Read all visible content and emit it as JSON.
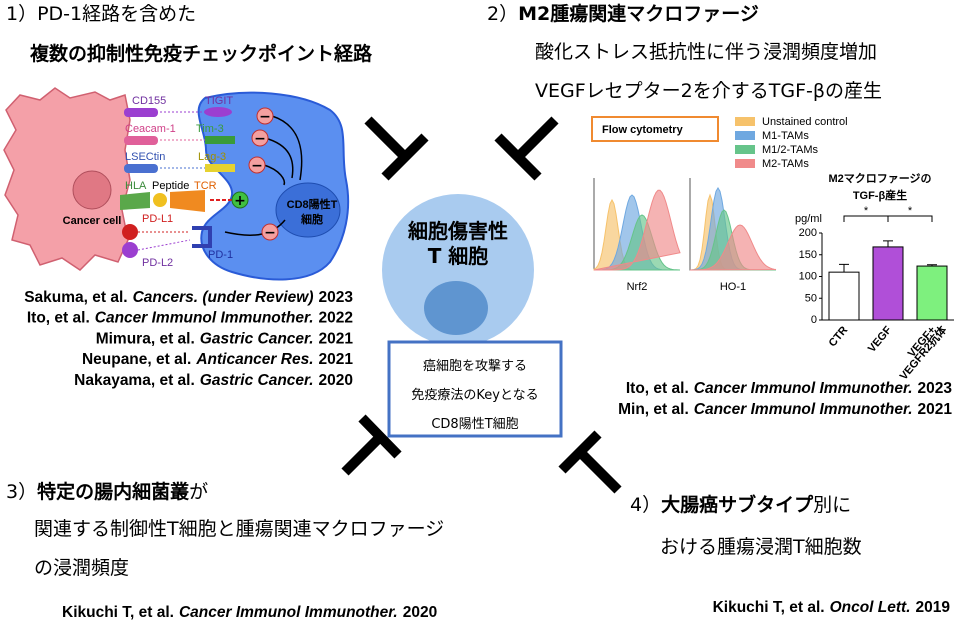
{
  "section1": {
    "heading": "1）PD-1経路を含めた",
    "subheading": "複数の抑制性免疫チェックポイント経路",
    "diagram": {
      "ligands": [
        "CD155",
        "Ceacam-1",
        "LSECtin",
        "HLA",
        "PD-L1",
        "PD-L2"
      ],
      "receptors": [
        "TIGIT",
        "Tim-3",
        "Lag-3",
        "TCR",
        "PD-1"
      ],
      "peptide": "Peptide",
      "cancer_cell": "Cancer cell",
      "t_cell": [
        "CD8陽性T",
        "細胞"
      ]
    },
    "references": [
      {
        "authors": "Sakuma, et al.",
        "journal": "Cancers. (under Review)",
        "year": "2023"
      },
      {
        "authors": "Ito, et al.",
        "journal": "Cancer Immunol Immunother.",
        "year": "2022"
      },
      {
        "authors": "Mimura, et al.",
        "journal": "Gastric Cancer.",
        "year": "2021"
      },
      {
        "authors": "Neupane, et al.",
        "journal": "Anticancer Res.",
        "year": "2021"
      },
      {
        "authors": "Nakayama, et al.",
        "journal": "Gastric Cancer.",
        "year": "2020"
      }
    ]
  },
  "section2": {
    "number": "2）",
    "heading": "M2腫瘍関連マクロファージ",
    "lines": [
      "酸化ストレス抵抗性に伴う浸潤頻度増加",
      "VEGFレセプター2を介するTGF-βの産生"
    ],
    "flow": {
      "title": "Flow cytometry",
      "legend": [
        {
          "name": "Unstained control",
          "color": "#f6c26b"
        },
        {
          "name": "M1-TAMs",
          "color": "#6fa8e0"
        },
        {
          "name": "M1/2-TAMs",
          "color": "#66c48a"
        },
        {
          "name": "M2-TAMs",
          "color": "#f08a8a"
        }
      ],
      "panels": [
        "Nrf2",
        "HO-1"
      ]
    },
    "tgf_chart": {
      "type": "bar",
      "title": [
        "M2マクロファージの",
        "TGF-β産生"
      ],
      "y_label": "pg/ml",
      "categories": [
        [
          "CTR"
        ],
        [
          "VEGF"
        ],
        [
          "VEGF+",
          "VEGFR2抗体"
        ]
      ],
      "values": [
        110,
        168,
        124
      ],
      "errors": [
        18,
        14,
        3
      ],
      "colors": [
        "#ffffff",
        "#b04fd8",
        "#7ef07e"
      ],
      "significance": [
        "*",
        "*"
      ],
      "ylim": [
        0,
        200
      ],
      "yticks": [
        0,
        50,
        100,
        150,
        200
      ]
    },
    "references": [
      {
        "authors": "Ito, et al.",
        "journal": "Cancer Immunol Immunother.",
        "year": "2023"
      },
      {
        "authors": "Min, et al.",
        "journal": "Cancer Immunol Immunother.",
        "year": "2021"
      }
    ]
  },
  "center": {
    "cell": [
      "細胞傷害性",
      "T 細胞"
    ],
    "box": [
      "癌細胞を攻撃する",
      "免疫療法のKeyとなる",
      "CD8陽性T細胞"
    ]
  },
  "section3": {
    "number": "3）",
    "heading": "特定の腸内細菌叢",
    "heading_suffix": "が",
    "lines": [
      "関連する制御性T細胞と腫瘍関連マクロファージ",
      "の浸潤頻度"
    ],
    "reference": {
      "authors": "Kikuchi T, et al.",
      "journal": "Cancer Immunol Immunother.",
      "year": "2020"
    }
  },
  "section4": {
    "number": "4）",
    "heading": "大腸癌サブタイプ",
    "heading_suffix": "別に",
    "lines": [
      "おける腫瘍浸潤T細胞数"
    ],
    "reference": {
      "authors": "Kikuchi T, et al.",
      "journal": "Oncol Lett.",
      "year": "2019"
    }
  }
}
